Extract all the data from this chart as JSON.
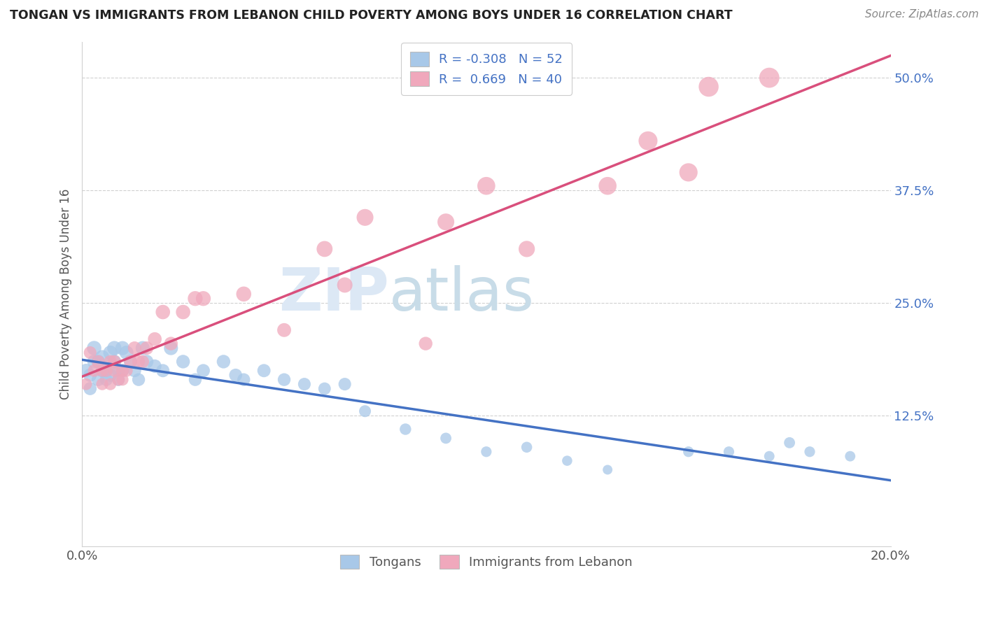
{
  "title": "TONGAN VS IMMIGRANTS FROM LEBANON CHILD POVERTY AMONG BOYS UNDER 16 CORRELATION CHART",
  "source": "Source: ZipAtlas.com",
  "ylabel": "Child Poverty Among Boys Under 16",
  "xlim": [
    0.0,
    0.2
  ],
  "ylim": [
    -0.02,
    0.54
  ],
  "x_ticks": [
    0.0,
    0.2
  ],
  "x_tick_labels": [
    "0.0%",
    "20.0%"
  ],
  "y_tick_vals": [
    0.125,
    0.25,
    0.375,
    0.5
  ],
  "y_tick_labels": [
    "12.5%",
    "25.0%",
    "37.5%",
    "50.0%"
  ],
  "legend_r_tongan": "-0.308",
  "legend_n_tongan": "52",
  "legend_r_lebanon": "0.669",
  "legend_n_lebanon": "40",
  "tongan_color": "#a8c8e8",
  "lebanon_color": "#f0a8bc",
  "tongan_line_color": "#4472c4",
  "lebanon_line_color": "#d94f7c",
  "background_color": "#ffffff",
  "tongan_x": [
    0.001,
    0.002,
    0.002,
    0.003,
    0.003,
    0.004,
    0.004,
    0.005,
    0.005,
    0.006,
    0.006,
    0.007,
    0.007,
    0.008,
    0.008,
    0.009,
    0.009,
    0.01,
    0.01,
    0.011,
    0.012,
    0.013,
    0.014,
    0.015,
    0.016,
    0.018,
    0.02,
    0.022,
    0.025,
    0.028,
    0.03,
    0.035,
    0.038,
    0.04,
    0.045,
    0.05,
    0.055,
    0.06,
    0.065,
    0.07,
    0.08,
    0.09,
    0.1,
    0.11,
    0.12,
    0.13,
    0.15,
    0.16,
    0.17,
    0.175,
    0.18,
    0.19
  ],
  "tongan_y": [
    0.175,
    0.155,
    0.17,
    0.2,
    0.185,
    0.165,
    0.185,
    0.19,
    0.175,
    0.175,
    0.165,
    0.17,
    0.195,
    0.2,
    0.185,
    0.175,
    0.165,
    0.2,
    0.175,
    0.195,
    0.185,
    0.175,
    0.165,
    0.2,
    0.185,
    0.18,
    0.175,
    0.2,
    0.185,
    0.165,
    0.175,
    0.185,
    0.17,
    0.165,
    0.175,
    0.165,
    0.16,
    0.155,
    0.16,
    0.13,
    0.11,
    0.1,
    0.085,
    0.09,
    0.075,
    0.065,
    0.085,
    0.085,
    0.08,
    0.095,
    0.085,
    0.08
  ],
  "lebanon_x": [
    0.001,
    0.002,
    0.003,
    0.004,
    0.005,
    0.005,
    0.006,
    0.007,
    0.007,
    0.008,
    0.008,
    0.009,
    0.01,
    0.01,
    0.011,
    0.012,
    0.013,
    0.014,
    0.015,
    0.016,
    0.018,
    0.02,
    0.022,
    0.025,
    0.028,
    0.03,
    0.04,
    0.05,
    0.06,
    0.065,
    0.07,
    0.085,
    0.09,
    0.1,
    0.11,
    0.13,
    0.14,
    0.15,
    0.155,
    0.17
  ],
  "lebanon_y": [
    0.16,
    0.195,
    0.175,
    0.185,
    0.16,
    0.175,
    0.175,
    0.185,
    0.16,
    0.175,
    0.185,
    0.165,
    0.175,
    0.165,
    0.175,
    0.185,
    0.2,
    0.185,
    0.185,
    0.2,
    0.21,
    0.24,
    0.205,
    0.24,
    0.255,
    0.255,
    0.26,
    0.22,
    0.31,
    0.27,
    0.345,
    0.205,
    0.34,
    0.38,
    0.31,
    0.38,
    0.43,
    0.395,
    0.49,
    0.5
  ],
  "tongan_sizes": [
    200,
    180,
    190,
    220,
    200,
    180,
    200,
    210,
    190,
    185,
    175,
    185,
    210,
    215,
    200,
    190,
    175,
    210,
    185,
    205,
    195,
    185,
    175,
    210,
    195,
    190,
    185,
    210,
    195,
    175,
    185,
    195,
    180,
    175,
    185,
    175,
    170,
    165,
    170,
    150,
    140,
    130,
    120,
    125,
    110,
    100,
    120,
    120,
    115,
    130,
    120,
    115
  ],
  "lebanon_sizes": [
    150,
    170,
    165,
    175,
    155,
    165,
    165,
    175,
    155,
    165,
    175,
    160,
    165,
    155,
    165,
    175,
    190,
    175,
    175,
    190,
    200,
    220,
    195,
    220,
    235,
    235,
    240,
    205,
    270,
    250,
    300,
    195,
    300,
    340,
    280,
    340,
    380,
    355,
    420,
    430
  ]
}
